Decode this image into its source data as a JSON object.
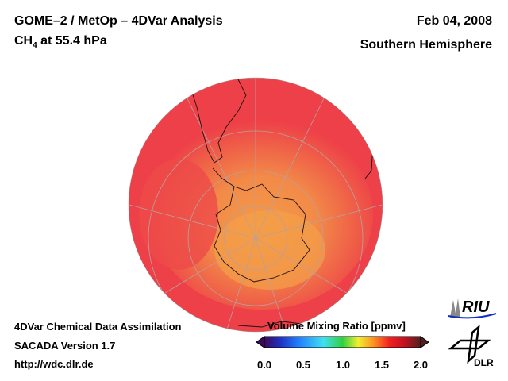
{
  "header": {
    "title": "GOME–2 / MetOp – 4DVar Analysis",
    "species": "CH",
    "species_sub": "4",
    "species_rest": " at 55.4 hPa",
    "date": "Feb 04, 2008",
    "region": "Southern Hemisphere"
  },
  "footer": {
    "line1": "4DVar Chemical Data Assimilation",
    "line2": "SACADA Version 1.7",
    "line3": "http://wdc.dlr.de"
  },
  "colorbar": {
    "title": "Volume Mixing Ratio [ppmv]",
    "ticks": [
      "0.0",
      "0.5",
      "1.0",
      "1.5",
      "2.0"
    ],
    "range": [
      0,
      2.0
    ],
    "colors": [
      "#3a0a5a",
      "#2040e0",
      "#20a0ff",
      "#40e0f0",
      "#30d040",
      "#f0f030",
      "#ff9020",
      "#f02020",
      "#c01020",
      "#502020"
    ]
  },
  "logos": {
    "riu": "RIU",
    "dlr": "DLR"
  }
}
